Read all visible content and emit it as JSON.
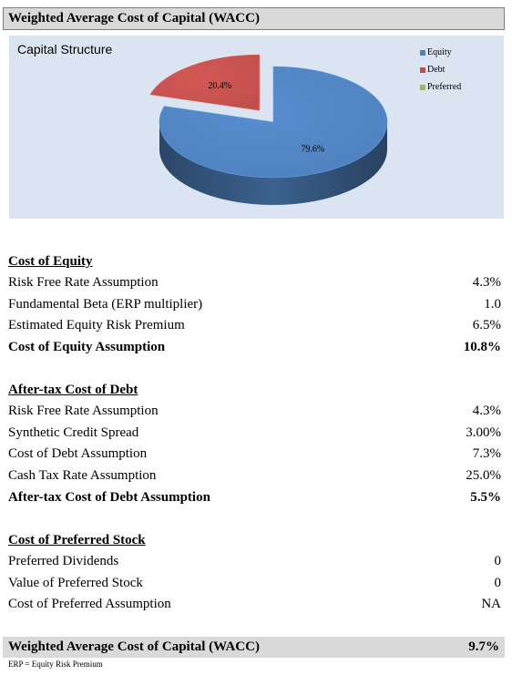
{
  "title": "Weighted Average Cost of Capital (WACC)",
  "chart_data": {
    "type": "pie",
    "title": "Capital Structure",
    "categories": [
      "Equity",
      "Debt",
      "Preferred"
    ],
    "values": [
      79.6,
      20.4,
      0
    ],
    "data_labels": [
      "79.6%",
      "20.4%",
      ""
    ],
    "colors": [
      "#4f81bd",
      "#c0504d",
      "#9bbb59"
    ],
    "legend_position": "top-right",
    "style": "3d-exploded"
  },
  "cost_of_equity": {
    "heading": "Cost of Equity",
    "rows": [
      {
        "label": "Risk Free Rate Assumption",
        "value": "4.3%"
      },
      {
        "label": "Fundamental Beta (ERP multiplier)",
        "value": "1.0"
      },
      {
        "label": "Estimated Equity Risk Premium",
        "value": "6.5%"
      },
      {
        "label": "Cost of Equity Assumption",
        "value": "10.8%"
      }
    ]
  },
  "cost_of_debt": {
    "heading": "After-tax Cost of Debt",
    "rows": [
      {
        "label": "Risk Free Rate Assumption",
        "value": "4.3%"
      },
      {
        "label": "Synthetic Credit Spread",
        "value": "3.00%"
      },
      {
        "label": "Cost of Debt Assumption",
        "value": "7.3%"
      },
      {
        "label": "Cash Tax Rate Assumption",
        "value": "25.0%"
      },
      {
        "label": "After-tax Cost of Debt Assumption",
        "value": "5.5%"
      }
    ]
  },
  "cost_of_preferred": {
    "heading": "Cost of Preferred Stock",
    "rows": [
      {
        "label": "Preferred Dividends",
        "value": "0"
      },
      {
        "label": "Value of Preferred Stock",
        "value": "0"
      },
      {
        "label": "Cost of Preferred Assumption",
        "value": "NA"
      }
    ]
  },
  "wacc": {
    "label": "Weighted Average Cost of Capital (WACC)",
    "value": "9.7%"
  },
  "footnote": "ERP = Equity Risk Premium"
}
